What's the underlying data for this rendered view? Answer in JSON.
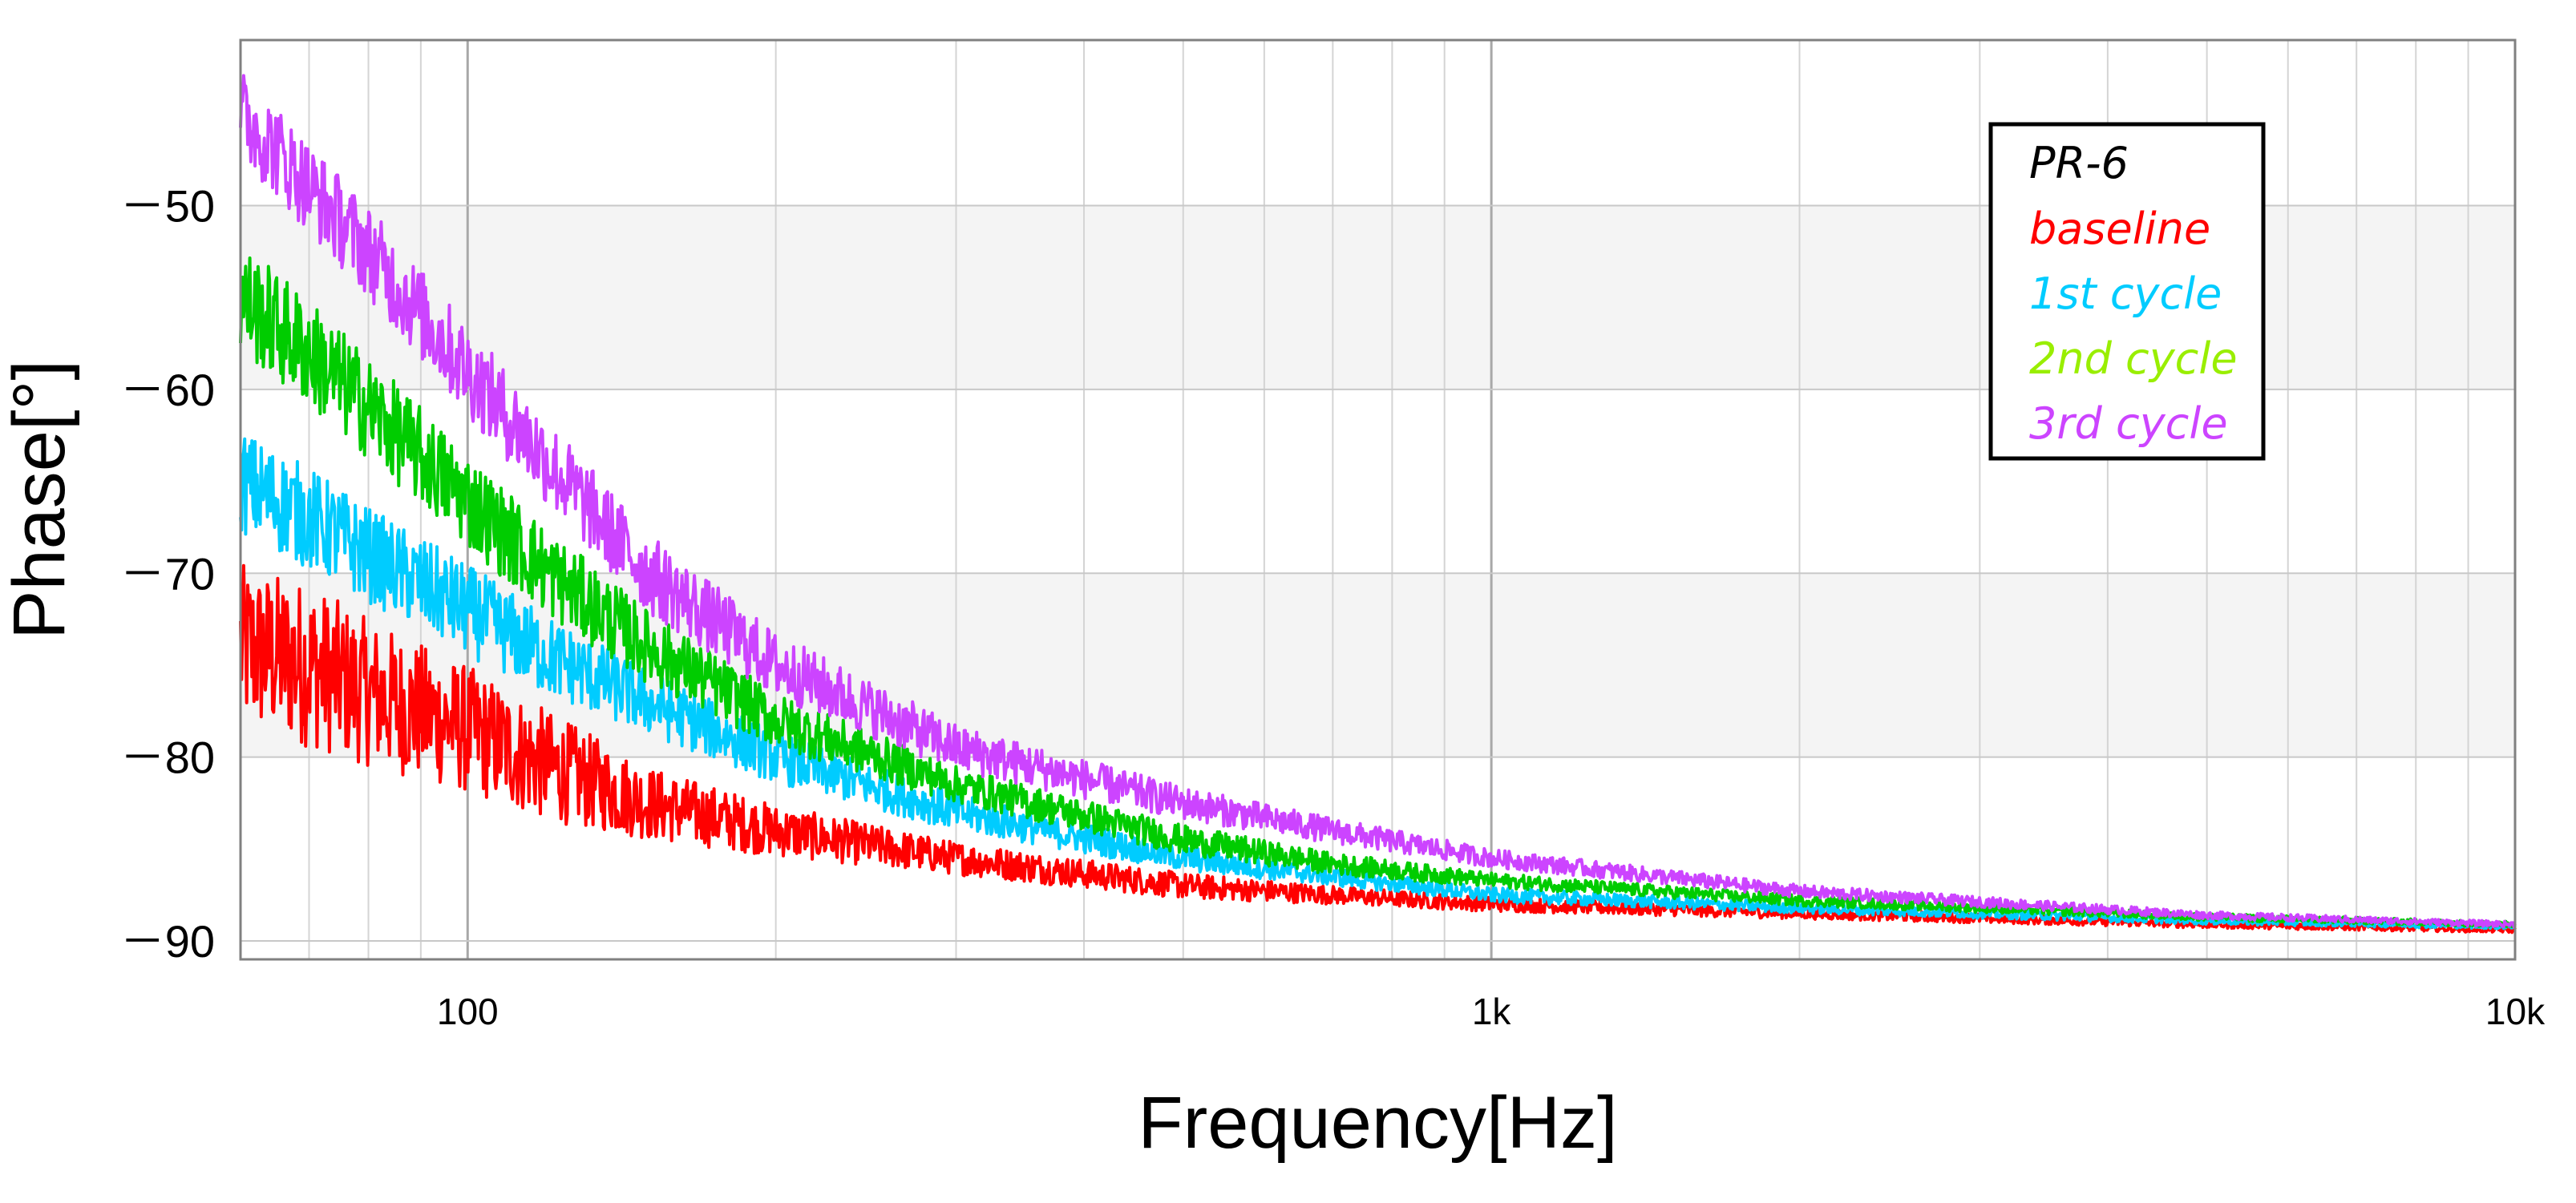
{
  "chart_data": {
    "type": "line",
    "title": "",
    "xlabel": "Frequency[Hz]",
    "ylabel": "Phase[°]",
    "x_scale": "log",
    "xlim": [
      60,
      10000
    ],
    "ylim": [
      -91,
      -41
    ],
    "x_ticks": [
      {
        "value": 100,
        "label": "100"
      },
      {
        "value": 1000,
        "label": "1k"
      },
      {
        "value": 10000,
        "label": "10k"
      }
    ],
    "y_ticks": [
      {
        "value": -50,
        "label": "－50"
      },
      {
        "value": -60,
        "label": "－60"
      },
      {
        "value": -70,
        "label": "－70"
      },
      {
        "value": -80,
        "label": "－80"
      },
      {
        "value": -90,
        "label": "－90"
      }
    ],
    "grid": true,
    "alternating_bands": true,
    "legend": {
      "placement": "top-right",
      "heading": "PR-6",
      "heading_color": "#000000"
    },
    "series": [
      {
        "name": "baseline",
        "color": "#ff0000",
        "x": [
          60,
          70,
          80,
          100,
          120,
          150,
          200,
          300,
          500,
          700,
          1000,
          2000,
          5000,
          10000
        ],
        "y": [
          -74,
          -75,
          -76.5,
          -78.5,
          -80.5,
          -82.5,
          -84,
          -85.5,
          -87,
          -87.5,
          -88,
          -88.5,
          -89.1,
          -89.4
        ],
        "noise": [
          4.5,
          4.5,
          4.0,
          3.5,
          3.0,
          2.0,
          1.4,
          0.9,
          0.7,
          0.5,
          0.4,
          0.3,
          0.2,
          0.15
        ]
      },
      {
        "name": "1st cycle",
        "color": "#00ccff",
        "x": [
          60,
          70,
          80,
          100,
          120,
          150,
          200,
          300,
          500,
          700,
          1000,
          2000,
          5000,
          10000
        ],
        "y": [
          -65,
          -67,
          -69,
          -72,
          -74.5,
          -77,
          -80,
          -83,
          -85.5,
          -86.5,
          -87.5,
          -88.2,
          -88.9,
          -89.2
        ],
        "noise": [
          2.8,
          2.8,
          2.6,
          2.5,
          2.2,
          1.8,
          1.4,
          1.0,
          0.7,
          0.5,
          0.4,
          0.3,
          0.2,
          0.15
        ]
      },
      {
        "name": "2nd cycle",
        "color": "#00cc00",
        "legend_color": "#99ee00",
        "x": [
          60,
          70,
          80,
          100,
          120,
          150,
          200,
          300,
          500,
          700,
          1000,
          2000,
          5000,
          10000
        ],
        "y": [
          -55,
          -58,
          -61,
          -66,
          -70,
          -74,
          -78,
          -81.5,
          -84.5,
          -85.8,
          -86.7,
          -87.8,
          -88.7,
          -89.1
        ],
        "noise": [
          3.0,
          3.0,
          2.8,
          2.6,
          2.4,
          2.0,
          1.5,
          1.0,
          0.8,
          0.6,
          0.4,
          0.3,
          0.2,
          0.15
        ]
      },
      {
        "name": "3rd cycle",
        "color": "#cc44ff",
        "x": [
          60,
          65,
          70,
          80,
          100,
          120,
          150,
          200,
          300,
          500,
          700,
          1000,
          2000,
          5000,
          10000
        ],
        "y": [
          -45,
          -47,
          -49,
          -52.5,
          -59,
          -64,
          -70,
          -75,
          -79.5,
          -82.5,
          -84,
          -85.5,
          -87.3,
          -88.6,
          -89.1
        ],
        "noise": [
          2.5,
          2.5,
          2.5,
          2.5,
          2.5,
          2.4,
          2.2,
          1.8,
          1.3,
          0.9,
          0.7,
          0.5,
          0.35,
          0.2,
          0.15
        ]
      }
    ]
  }
}
